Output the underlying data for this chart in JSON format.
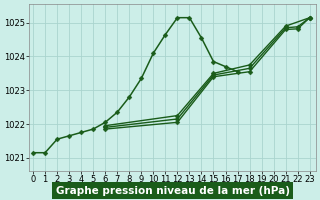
{
  "xlabel": "Graphe pression niveau de la mer (hPa)",
  "background_color": "#cceee8",
  "grid_color": "#aad4ce",
  "line_color": "#1a5c1a",
  "x_ticks": [
    0,
    1,
    2,
    3,
    4,
    5,
    6,
    7,
    8,
    9,
    10,
    11,
    12,
    13,
    14,
    15,
    16,
    17,
    18,
    19,
    20,
    21,
    22,
    23
  ],
  "y_ticks": [
    1021,
    1022,
    1023,
    1024,
    1025
  ],
  "ylim": [
    1020.6,
    1025.55
  ],
  "xlim": [
    -0.3,
    23.5
  ],
  "series": [
    {
      "x": [
        0,
        1,
        2,
        3,
        4,
        5,
        6,
        7,
        8,
        9,
        10,
        11,
        12,
        13,
        14,
        15,
        16,
        17
      ],
      "y": [
        1021.15,
        1021.15,
        1021.55,
        1021.65,
        1021.75,
        1021.85,
        1022.05,
        1022.35,
        1022.8,
        1023.35,
        1024.1,
        1024.65,
        1025.15,
        1025.15,
        1024.55,
        1023.85,
        1023.7,
        1023.55
      ],
      "marker": "D",
      "markersize": 2.5,
      "linewidth": 1.1
    },
    {
      "x": [
        6,
        12,
        15,
        18,
        21,
        23
      ],
      "y": [
        1021.95,
        1022.25,
        1023.5,
        1023.75,
        1024.9,
        1025.15
      ],
      "marker": "D",
      "markersize": 2.5,
      "linewidth": 1.0
    },
    {
      "x": [
        6,
        12,
        15,
        18,
        21,
        22,
        23
      ],
      "y": [
        1021.9,
        1022.15,
        1023.45,
        1023.65,
        1024.85,
        1024.88,
        1025.15
      ],
      "marker": "D",
      "markersize": 2.5,
      "linewidth": 1.0
    },
    {
      "x": [
        6,
        12,
        15,
        18,
        21,
        22,
        23
      ],
      "y": [
        1021.85,
        1022.05,
        1023.4,
        1023.55,
        1024.8,
        1024.82,
        1025.15
      ],
      "marker": "D",
      "markersize": 2.5,
      "linewidth": 1.0
    }
  ],
  "tick_fontsize": 6.0,
  "xlabel_fontsize": 7.5
}
